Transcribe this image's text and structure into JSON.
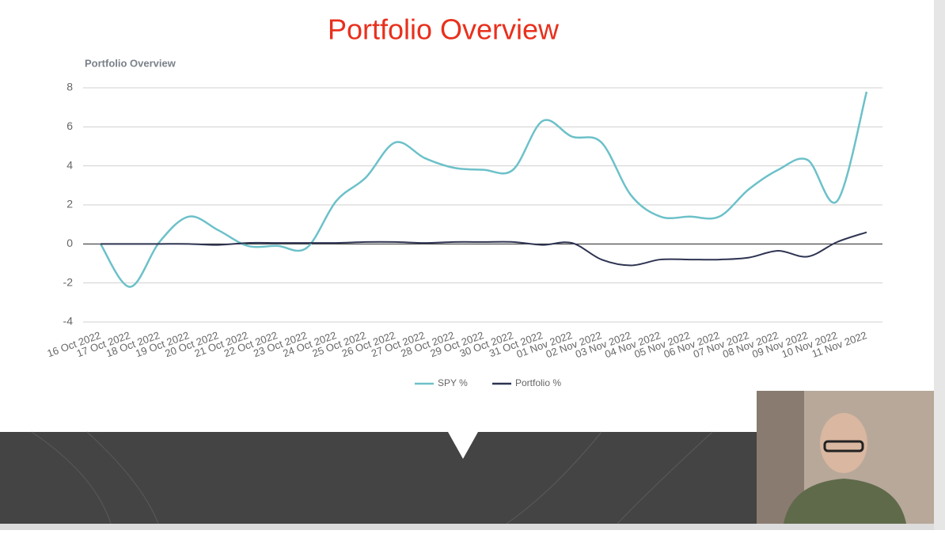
{
  "slide_title": "Portfolio Overview",
  "chart_data": {
    "type": "line",
    "title": "Portfolio Overview",
    "categories": [
      "16 Oct 2022",
      "17 Oct 2022",
      "18 Oct 2022",
      "19 Oct 2022",
      "20 Oct 2022",
      "21 Oct 2022",
      "22 Oct 2022",
      "23 Oct 2022",
      "24 Oct 2022",
      "25 Oct 2022",
      "26 Oct 2022",
      "27 Oct 2022",
      "28 Oct 2022",
      "29 Oct 2022",
      "30 Oct 2022",
      "31 Oct 2022",
      "01 Nov 2022",
      "02 Nov 2022",
      "03 Nov 2022",
      "04 Nov 2022",
      "05 Nov 2022",
      "06 Nov 2022",
      "07 Nov 2022",
      "08 Nov 2022",
      "09 Nov 2022",
      "10 Nov 2022",
      "11 Nov 2022"
    ],
    "series": [
      {
        "name": "SPY %",
        "color": "#6cc1c9",
        "values": [
          0,
          -2.2,
          0.1,
          1.4,
          0.7,
          -0.1,
          -0.1,
          -0.2,
          2.2,
          3.4,
          5.2,
          4.4,
          3.9,
          3.8,
          3.8,
          6.3,
          5.5,
          5.2,
          2.5,
          1.4,
          1.4,
          1.4,
          2.8,
          3.8,
          4.3,
          2.2,
          7.8
        ]
      },
      {
        "name": "Portfolio %",
        "color": "#2e3452",
        "values": [
          0,
          0,
          0,
          0,
          -0.05,
          0.05,
          0.05,
          0.05,
          0.05,
          0.1,
          0.1,
          0.05,
          0.1,
          0.1,
          0.1,
          -0.05,
          0.05,
          -0.8,
          -1.1,
          -0.8,
          -0.8,
          -0.8,
          -0.7,
          -0.35,
          -0.65,
          0.1,
          0.6
        ]
      }
    ],
    "ylim": [
      -4,
      8
    ],
    "yticks": [
      -4,
      -2,
      0,
      2,
      4,
      6,
      8
    ],
    "grid": true,
    "legend": "bottom"
  }
}
